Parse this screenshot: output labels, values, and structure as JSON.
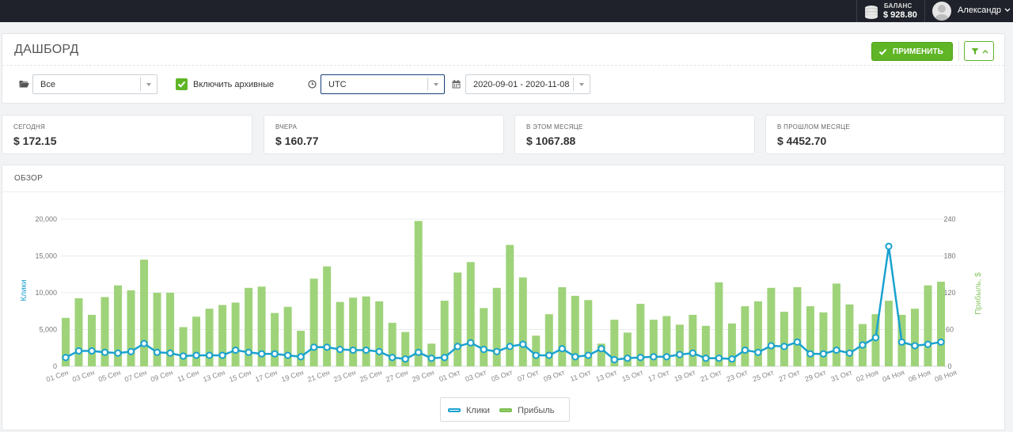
{
  "header": {
    "balance_label": "БАЛАНС",
    "balance_value": "$ 928.80",
    "user_name": "Александр",
    "icons": [
      "coins-icon",
      "avatar-icon",
      "chevron-down-icon"
    ]
  },
  "filters": {
    "title": "ДАШБОРД",
    "apply_label": "ПРИМЕНИТЬ",
    "campaign_select": "Все",
    "archive_checkbox": {
      "label": "Включить архивные",
      "checked": true
    },
    "timezone_select": "UTC",
    "date_range": "2020-09-01 - 2020-11-08",
    "icons": [
      "folder-open-icon",
      "check-icon",
      "filter-icon",
      "chevron-up-icon",
      "clock-icon",
      "calendar-icon"
    ]
  },
  "stats": [
    {
      "label": "СЕГОДНЯ",
      "value": "$ 172.15"
    },
    {
      "label": "ВЧЕРА",
      "value": "$ 160.77"
    },
    {
      "label": "В ЭТОМ МЕСЯЦЕ",
      "value": "$ 1067.88"
    },
    {
      "label": "В ПРОШЛОМ МЕСЯЦЕ",
      "value": "$ 4452.70"
    }
  ],
  "overview": {
    "title": "ОБЗОР",
    "colors": {
      "clicks": "#1aa2cf",
      "profit": "#9fd37a"
    }
  },
  "chart_data": {
    "type": "bar",
    "title": "",
    "x_tick_labels": [
      "01 Сен",
      "03 Сен",
      "05 Сен",
      "07 Сен",
      "09 Сен",
      "11 Сен",
      "13 Сен",
      "15 Сен",
      "17 Сен",
      "19 Сен",
      "21 Сен",
      "23 Сен",
      "25 Сен",
      "27 Сен",
      "29 Сен",
      "01 Окт",
      "03 Окт",
      "05 Окт",
      "07 Окт",
      "09 Окт",
      "11 Окт",
      "13 Окт",
      "15 Окт",
      "17 Окт",
      "19 Окт",
      "21 Окт",
      "23 Окт",
      "25 Окт",
      "27 Окт",
      "29 Окт",
      "31 Окт",
      "02 Ноя",
      "04 Ноя",
      "06 Ноя",
      "08 Ноя"
    ],
    "y_left": {
      "label": "Клики",
      "ticks": [
        "0",
        "5,000",
        "10,000",
        "15,000",
        "20,000"
      ],
      "range": [
        0,
        20000
      ]
    },
    "y_right": {
      "label": "Прибыль, $",
      "ticks": [
        "0",
        "60",
        "120",
        "180",
        "240"
      ],
      "range": [
        0,
        240
      ]
    },
    "grid": true,
    "legend": {
      "position": "bottom",
      "entries": [
        "Клики",
        "Прибыль"
      ]
    },
    "series": [
      {
        "name": "Прибыль",
        "type": "bar",
        "axis": "right",
        "values": [
          79,
          111,
          84,
          113,
          132,
          124,
          174,
          120,
          120,
          64,
          81,
          94,
          100,
          104,
          128,
          130,
          87,
          97,
          58,
          143,
          163,
          105,
          112,
          114,
          106,
          71,
          56,
          237,
          37,
          107,
          153,
          170,
          95,
          128,
          198,
          145,
          50,
          85,
          129,
          115,
          108,
          37,
          76,
          55,
          102,
          76,
          82,
          68,
          84,
          66,
          137,
          70,
          98,
          106,
          128,
          89,
          129,
          98,
          88,
          135,
          101,
          69,
          85,
          107,
          84,
          94,
          132,
          138
        ],
        "values_explicit": false,
        "note": ""
      },
      {
        "name": "Клики",
        "type": "line",
        "axis": "left",
        "values": [
          1200,
          2100,
          2100,
          1900,
          1800,
          2000,
          3100,
          1900,
          1800,
          1400,
          1500,
          1500,
          1500,
          2200,
          1900,
          1700,
          1700,
          1500,
          1300,
          2600,
          2600,
          2300,
          2200,
          2200,
          2000,
          1200,
          1000,
          1900,
          1100,
          1200,
          2700,
          3200,
          2300,
          2000,
          2700,
          3000,
          1500,
          1500,
          2400,
          1300,
          1500,
          2400,
          900,
          1100,
          1200,
          1300,
          1300,
          1600,
          1800,
          1100,
          1100,
          1000,
          2200,
          1900,
          2800,
          2700,
          3300,
          1700,
          1700,
          2200,
          1800,
          2900,
          3900,
          16300,
          3300,
          2800,
          3000,
          3300
        ]
      }
    ]
  }
}
